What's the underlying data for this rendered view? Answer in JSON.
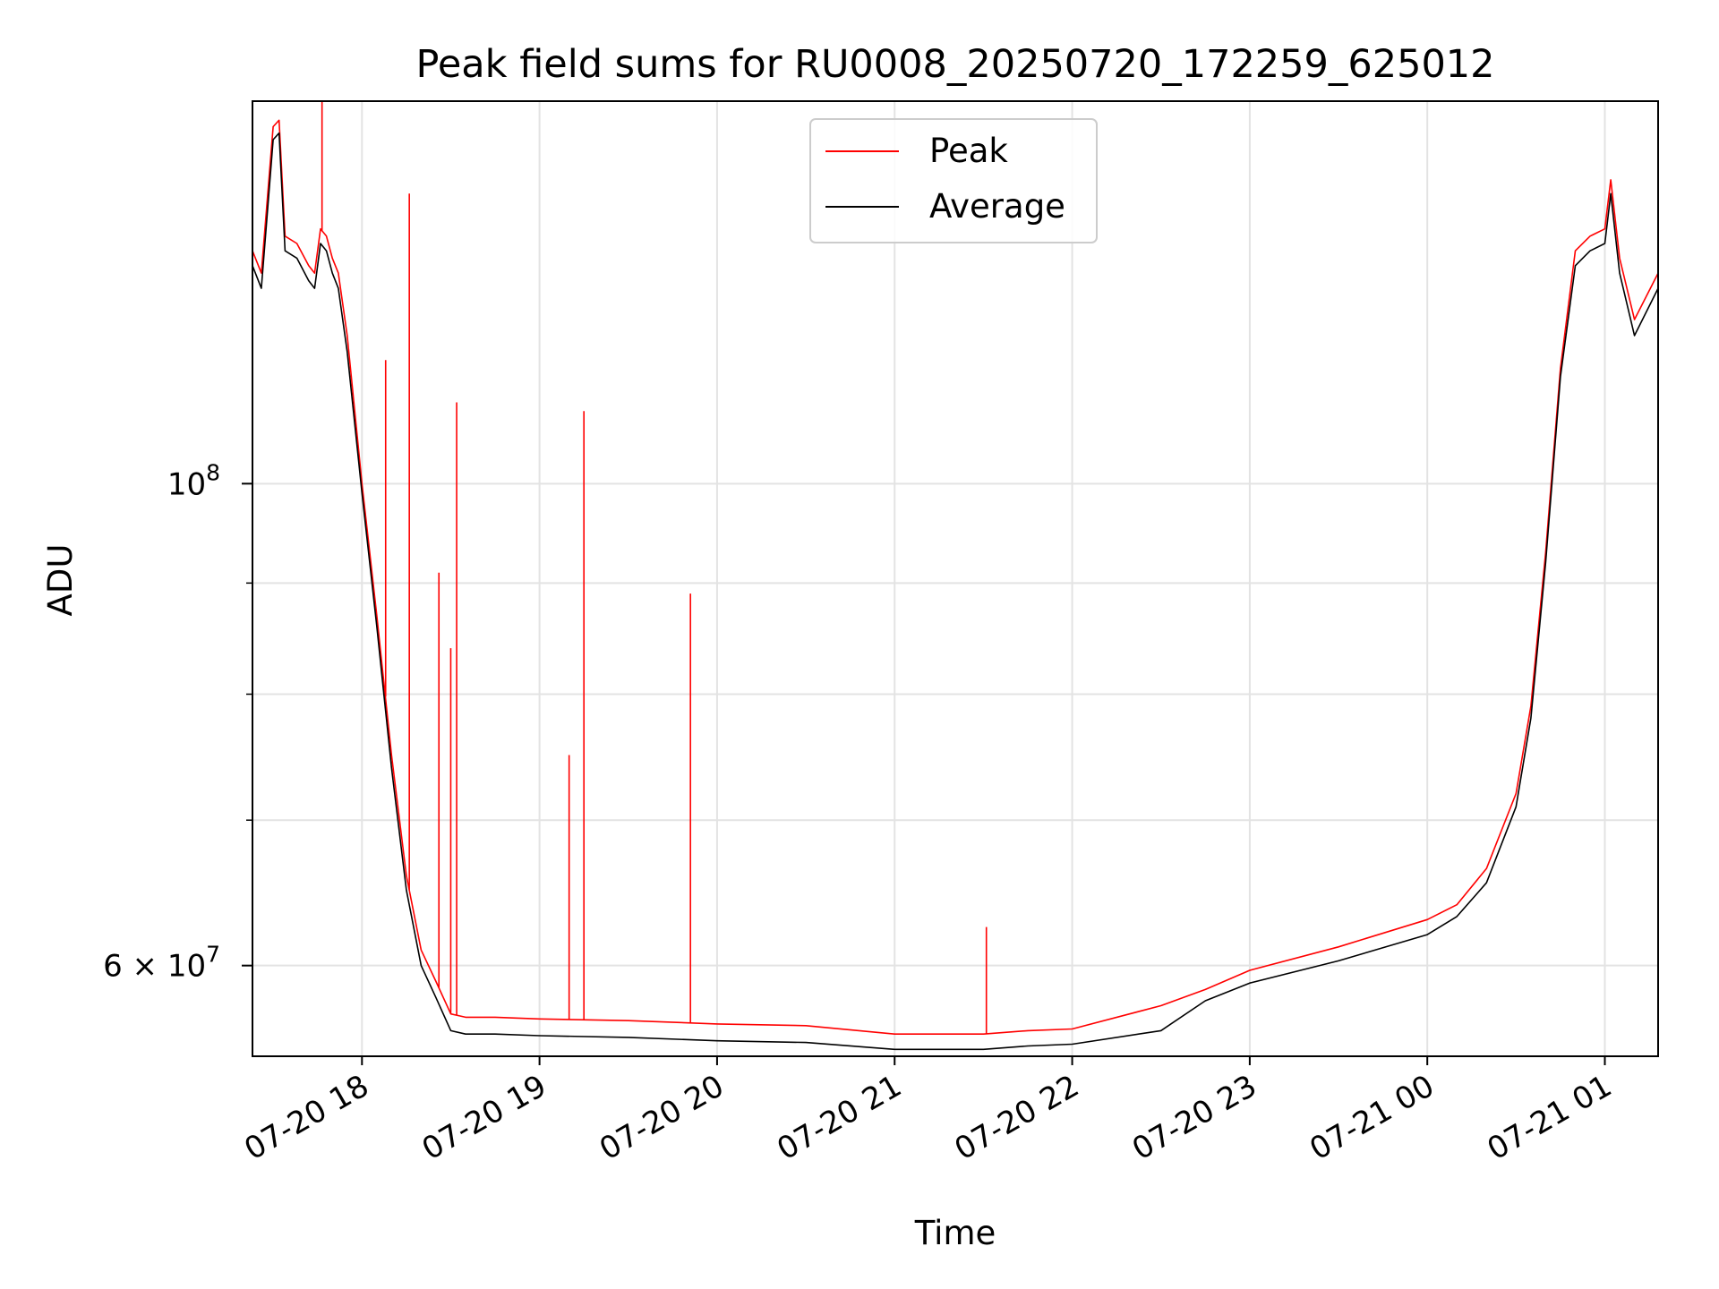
{
  "chart_data": {
    "type": "line",
    "title": "Peak field sums for RU0008_20250720_172259_625012",
    "xlabel": "Time",
    "ylabel": "ADU",
    "x_range": [
      "2025-07-20T17:23:00",
      "2025-07-21T01:18:00"
    ],
    "y_range": [
      54500000,
      150000000
    ],
    "y_scale": "log",
    "grid": true,
    "legend_position": "upper-center",
    "x_ticks": [
      "07-20 18",
      "07-20 19",
      "07-20 20",
      "07-20 21",
      "07-20 22",
      "07-20 23",
      "07-21 00",
      "07-21 01"
    ],
    "y_tick_labels": [
      {
        "value": 100000000,
        "base": "10",
        "exp": "8"
      },
      {
        "value": 60000000,
        "base": "6 × 10",
        "exp": "7"
      }
    ],
    "y_minor_ticks": [
      70000000,
      80000000,
      90000000
    ],
    "series": [
      {
        "name": "Peak",
        "color": "#ff0000",
        "x": [
          "2025-07-20T17:23:00",
          "2025-07-20T17:26:00",
          "2025-07-20T17:30:00",
          "2025-07-20T17:32:00",
          "2025-07-20T17:34:00",
          "2025-07-20T17:38:00",
          "2025-07-20T17:42:00",
          "2025-07-20T17:44:00",
          "2025-07-20T17:46:00",
          "2025-07-20T17:48:00",
          "2025-07-20T17:50:00",
          "2025-07-20T17:52:00",
          "2025-07-20T17:55:00",
          "2025-07-20T18:00:00",
          "2025-07-20T18:05:00",
          "2025-07-20T18:10:00",
          "2025-07-20T18:15:00",
          "2025-07-20T18:20:00",
          "2025-07-20T18:25:00",
          "2025-07-20T18:30:00",
          "2025-07-20T18:35:00",
          "2025-07-20T18:45:00",
          "2025-07-20T19:00:00",
          "2025-07-20T19:30:00",
          "2025-07-20T20:00:00",
          "2025-07-20T20:30:00",
          "2025-07-20T21:00:00",
          "2025-07-20T21:30:00",
          "2025-07-20T21:45:00",
          "2025-07-20T22:00:00",
          "2025-07-20T22:30:00",
          "2025-07-20T22:45:00",
          "2025-07-20T23:00:00",
          "2025-07-20T23:30:00",
          "2025-07-21T00:00:00",
          "2025-07-21T00:10:00",
          "2025-07-21T00:20:00",
          "2025-07-21T00:30:00",
          "2025-07-21T00:35:00",
          "2025-07-21T00:40:00",
          "2025-07-21T00:45:00",
          "2025-07-21T00:50:00",
          "2025-07-21T00:55:00",
          "2025-07-21T01:00:00",
          "2025-07-21T01:02:00",
          "2025-07-21T01:05:00",
          "2025-07-21T01:10:00",
          "2025-07-21T01:18:00"
        ],
        "y": [
          128000000,
          125000000,
          146000000,
          147000000,
          130000000,
          129000000,
          126000000,
          125000000,
          131000000,
          130000000,
          127000000,
          125000000,
          117000000,
          100000000,
          87000000,
          75000000,
          66000000,
          61000000,
          59000000,
          57000000,
          56800000,
          56800000,
          56700000,
          56600000,
          56400000,
          56300000,
          55800000,
          55800000,
          56000000,
          56100000,
          57500000,
          58500000,
          59700000,
          61200000,
          63000000,
          64000000,
          66500000,
          72000000,
          79000000,
          93000000,
          113000000,
          128000000,
          130000000,
          131000000,
          138000000,
          127000000,
          119000000,
          125000000
        ],
        "spikes": [
          {
            "x": "2025-07-20T17:46:30",
            "y": 150000000
          },
          {
            "x": "2025-07-20T18:08:00",
            "y": 114000000
          },
          {
            "x": "2025-07-20T18:16:00",
            "y": 136000000
          },
          {
            "x": "2025-07-20T18:26:00",
            "y": 91000000
          },
          {
            "x": "2025-07-20T18:30:00",
            "y": 84000000
          },
          {
            "x": "2025-07-20T18:32:00",
            "y": 109000000
          },
          {
            "x": "2025-07-20T19:10:00",
            "y": 75000000
          },
          {
            "x": "2025-07-20T19:15:00",
            "y": 108000000
          },
          {
            "x": "2025-07-20T19:51:00",
            "y": 89000000
          },
          {
            "x": "2025-07-20T21:31:00",
            "y": 62500000
          }
        ]
      },
      {
        "name": "Average",
        "color": "#000000",
        "x": [
          "2025-07-20T17:23:00",
          "2025-07-20T17:26:00",
          "2025-07-20T17:30:00",
          "2025-07-20T17:32:00",
          "2025-07-20T17:34:00",
          "2025-07-20T17:38:00",
          "2025-07-20T17:42:00",
          "2025-07-20T17:44:00",
          "2025-07-20T17:46:00",
          "2025-07-20T17:48:00",
          "2025-07-20T17:50:00",
          "2025-07-20T17:52:00",
          "2025-07-20T17:55:00",
          "2025-07-20T18:00:00",
          "2025-07-20T18:05:00",
          "2025-07-20T18:10:00",
          "2025-07-20T18:15:00",
          "2025-07-20T18:20:00",
          "2025-07-20T18:25:00",
          "2025-07-20T18:30:00",
          "2025-07-20T18:35:00",
          "2025-07-20T18:45:00",
          "2025-07-20T19:00:00",
          "2025-07-20T19:30:00",
          "2025-07-20T20:00:00",
          "2025-07-20T20:30:00",
          "2025-07-20T21:00:00",
          "2025-07-20T21:30:00",
          "2025-07-20T21:45:00",
          "2025-07-20T22:00:00",
          "2025-07-20T22:30:00",
          "2025-07-20T22:45:00",
          "2025-07-20T23:00:00",
          "2025-07-20T23:30:00",
          "2025-07-21T00:00:00",
          "2025-07-21T00:10:00",
          "2025-07-21T00:20:00",
          "2025-07-21T00:30:00",
          "2025-07-21T00:35:00",
          "2025-07-21T00:40:00",
          "2025-07-21T00:45:00",
          "2025-07-21T00:50:00",
          "2025-07-21T00:55:00",
          "2025-07-21T01:00:00",
          "2025-07-21T01:02:00",
          "2025-07-21T01:05:00",
          "2025-07-21T01:10:00",
          "2025-07-21T01:18:00"
        ],
        "y": [
          126000000,
          123000000,
          144000000,
          145000000,
          128000000,
          127000000,
          124000000,
          123000000,
          129000000,
          128000000,
          125000000,
          123000000,
          115000000,
          99000000,
          86000000,
          74000000,
          65000000,
          60000000,
          58000000,
          56000000,
          55800000,
          55800000,
          55700000,
          55600000,
          55400000,
          55300000,
          54900000,
          54900000,
          55100000,
          55200000,
          56000000,
          57800000,
          58900000,
          60300000,
          62000000,
          63200000,
          65500000,
          71000000,
          78000000,
          92000000,
          112000000,
          126000000,
          128000000,
          129000000,
          136000000,
          125000000,
          117000000,
          123000000
        ]
      }
    ]
  }
}
